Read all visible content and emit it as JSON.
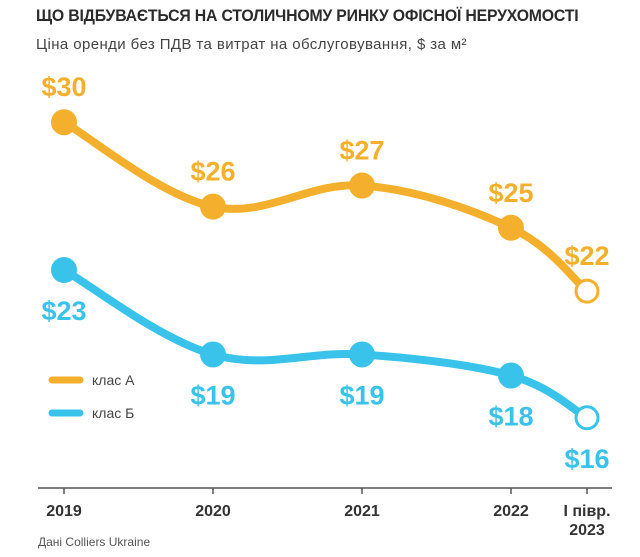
{
  "title": "ЩО ВІДБУВАЄТЬСЯ НА СТОЛИЧНОМУ РИНКУ ОФІСНОЇ НЕРУХОМОСТІ",
  "subtitle": "Ціна оренди без ПДВ та витрат на обслуговування, $ за м²",
  "source": "Дані Colliers Ukraine",
  "colors": {
    "class_a": "#f4b02c",
    "class_b": "#39c3ea",
    "axis": "#555555"
  },
  "chart_data": {
    "type": "line",
    "title": "ЩО ВІДБУВАЄТЬСЯ НА СТОЛИЧНОМУ РИНКУ ОФІСНОЇ НЕРУХОМОСТІ",
    "subtitle": "Ціна оренди без ПДВ та витрат на обслуговування, $ за м²",
    "categories": [
      "2019",
      "2020",
      "2021",
      "2022",
      "І півр.\n2023"
    ],
    "category_lines": [
      [
        "2019"
      ],
      [
        "2020"
      ],
      [
        "2021"
      ],
      [
        "2022"
      ],
      [
        "І півр.",
        "2023"
      ]
    ],
    "series": [
      {
        "name": "клас А",
        "values": [
          30,
          26,
          27,
          25,
          22
        ],
        "labels": [
          "$30",
          "$26",
          "$27",
          "$25",
          "$22"
        ],
        "color": "#f4b02c",
        "last_point_hollow": true
      },
      {
        "name": "клас Б",
        "values": [
          23,
          19,
          19,
          18,
          16
        ],
        "labels": [
          "$23",
          "$19",
          "$19",
          "$18",
          "$16"
        ],
        "color": "#39c3ea",
        "last_point_hollow": true
      }
    ],
    "ylim": [
      14,
      32
    ],
    "grid": false,
    "legend": "left"
  }
}
